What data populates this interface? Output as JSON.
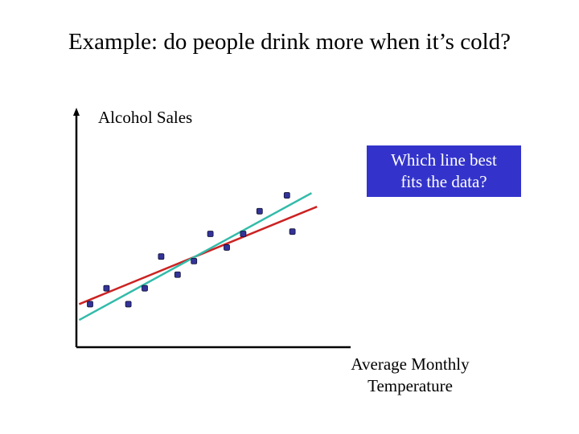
{
  "slide": {
    "title": "Example: do people drink more when it’s cold?"
  },
  "callout": {
    "line1": "Which line best",
    "line2": "fits the data?",
    "background_color": "#3333cc"
  },
  "chart_data": {
    "type": "scatter",
    "ylabel": "Alcohol Sales",
    "xlabel_lines": [
      "Average Monthly",
      "Temperature"
    ],
    "ticks": "none",
    "grid": false,
    "xlim": [
      0,
      100
    ],
    "ylim": [
      0,
      100
    ],
    "points": [
      {
        "x": 5,
        "y": 19
      },
      {
        "x": 11,
        "y": 26
      },
      {
        "x": 19,
        "y": 19
      },
      {
        "x": 25,
        "y": 26
      },
      {
        "x": 31,
        "y": 40
      },
      {
        "x": 37,
        "y": 32
      },
      {
        "x": 43,
        "y": 38
      },
      {
        "x": 49,
        "y": 50
      },
      {
        "x": 55,
        "y": 44
      },
      {
        "x": 61,
        "y": 50
      },
      {
        "x": 67,
        "y": 60
      },
      {
        "x": 77,
        "y": 67
      },
      {
        "x": 79,
        "y": 51
      }
    ],
    "fit_lines": [
      {
        "color": "#cc2222",
        "x1": 1,
        "y1": 19,
        "x2": 88,
        "y2": 62
      },
      {
        "color": "#33bbaa",
        "x1": 1,
        "y1": 12,
        "x2": 86,
        "y2": 68
      }
    ],
    "point_color": "#333399"
  }
}
